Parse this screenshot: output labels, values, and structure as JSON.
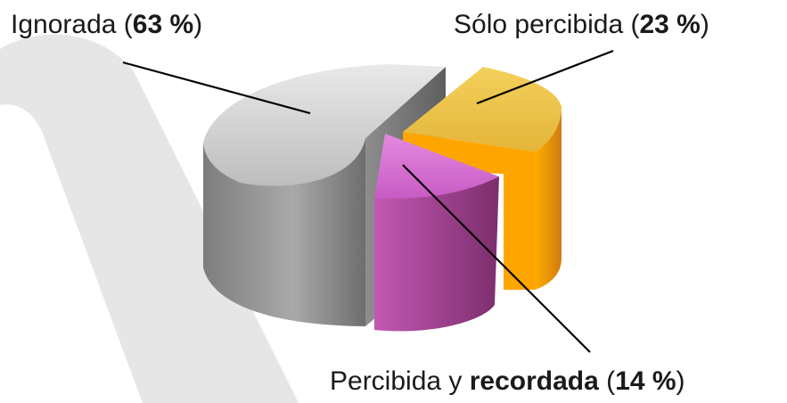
{
  "chart_data": {
    "type": "pie",
    "style": "3d-exploded",
    "title": "",
    "slices": [
      {
        "id": "ignorada",
        "label": "Ignorada",
        "value": 63,
        "value_text": "63 %",
        "color": "#b8b8b8"
      },
      {
        "id": "solo-percibida",
        "label": "Sólo percibida",
        "value": 23,
        "value_text": "23 %",
        "color": "#f5b21a"
      },
      {
        "id": "percibida-recordada",
        "label_prefix": "Percibida y ",
        "label_bold": "recordada",
        "value": 14,
        "value_text": "14 %",
        "color": "#b0489e"
      }
    ],
    "background_shape_color": "#e6e6e6"
  }
}
